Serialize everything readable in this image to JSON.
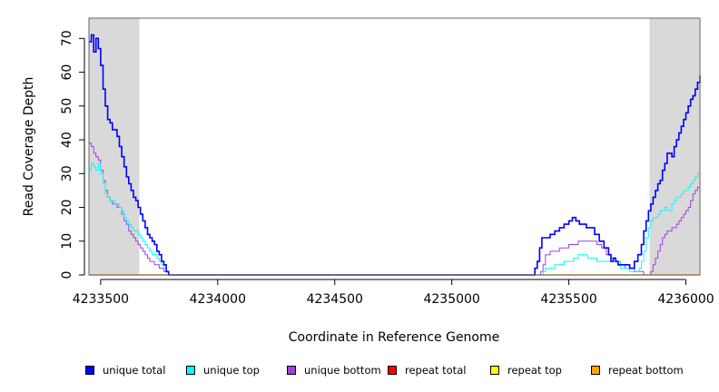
{
  "chart_data": {
    "type": "line",
    "title": "",
    "xlabel": "Coordinate in Reference Genome",
    "ylabel": "Read Coverage Depth",
    "xlim": [
      4233450,
      4236060
    ],
    "ylim": [
      0,
      76
    ],
    "x_ticks": [
      4233500,
      4234000,
      4234500,
      4235000,
      4235500,
      4236000
    ],
    "x_tick_labels": [
      "4233500",
      "4234000",
      "4234500",
      "4235000",
      "4235500",
      "4236000"
    ],
    "y_ticks": [
      0,
      10,
      20,
      30,
      40,
      50,
      60,
      70
    ],
    "y_tick_labels": [
      "0",
      "10",
      "20",
      "30",
      "40",
      "50",
      "60",
      "70"
    ],
    "grid": false,
    "legend_position": "bottom",
    "shaded_regions": [
      {
        "x": [
          4233450,
          4233665
        ],
        "color": "#d9d9d9"
      },
      {
        "x": [
          4235845,
          4236060
        ],
        "color": "#d9d9d9"
      }
    ],
    "series": [
      {
        "name": "unique total",
        "color": "#0000ff",
        "width": 1.6,
        "x": [
          4233450,
          4233460,
          4233470,
          4233480,
          4233490,
          4233500,
          4233510,
          4233520,
          4233530,
          4233540,
          4233550,
          4233560,
          4233570,
          4233580,
          4233590,
          4233600,
          4233610,
          4233620,
          4233630,
          4233640,
          4233650,
          4233660,
          4233670,
          4233680,
          4233690,
          4233700,
          4233710,
          4233720,
          4233730,
          4233740,
          4233750,
          4233760,
          4233770,
          4233780,
          4233790,
          4233800,
          4235340,
          4235355,
          4235365,
          4235375,
          4235385,
          4235400,
          4235420,
          4235440,
          4235460,
          4235480,
          4235500,
          4235515,
          4235530,
          4235545,
          4235560,
          4235575,
          4235590,
          4235610,
          4235630,
          4235650,
          4235670,
          4235680,
          4235690,
          4235700,
          4235710,
          4235720,
          4235740,
          4235760,
          4235780,
          4235795,
          4235810,
          4235820,
          4235830,
          4235840,
          4235850,
          4235860,
          4235870,
          4235880,
          4235890,
          4235900,
          4235910,
          4235920,
          4235930,
          4235940,
          4235950,
          4235960,
          4235970,
          4235980,
          4235990,
          4236000,
          4236010,
          4236020,
          4236030,
          4236040,
          4236050,
          4236060
        ],
        "y": [
          69,
          71,
          66,
          70,
          67,
          62,
          55,
          50,
          46,
          45,
          43,
          43,
          41,
          38,
          35,
          32,
          29,
          27,
          25,
          23,
          22,
          20,
          18,
          16,
          14,
          12,
          11,
          10,
          9,
          7,
          6,
          4,
          3,
          1,
          0,
          0,
          0,
          2,
          4,
          8,
          11,
          11,
          12,
          13,
          14,
          15,
          16,
          17,
          16,
          15,
          15,
          14,
          14,
          12,
          10,
          8,
          6,
          4,
          5,
          4,
          3,
          3,
          3,
          2,
          4,
          6,
          9,
          13,
          16,
          19,
          21,
          23,
          25,
          27,
          28,
          31,
          33,
          36,
          36,
          35,
          38,
          40,
          42,
          44,
          46,
          48,
          50,
          52,
          53,
          55,
          57,
          59
        ]
      },
      {
        "name": "unique top",
        "color": "#00ffff",
        "width": 1,
        "x": [
          4233450,
          4233460,
          4233470,
          4233480,
          4233490,
          4233500,
          4233510,
          4233520,
          4233530,
          4233540,
          4233550,
          4233560,
          4233570,
          4233580,
          4233590,
          4233600,
          4233610,
          4233620,
          4233630,
          4233640,
          4233650,
          4233660,
          4233670,
          4233680,
          4233690,
          4233700,
          4233710,
          4233720,
          4233730,
          4233740,
          4233750,
          4233760,
          4233770,
          4233780,
          4233790,
          4233800,
          4235380,
          4235390,
          4235400,
          4235420,
          4235440,
          4235460,
          4235480,
          4235500,
          4235520,
          4235540,
          4235560,
          4235580,
          4235600,
          4235620,
          4235640,
          4235660,
          4235680,
          4235700,
          4235720,
          4235740,
          4235760,
          4235780,
          4235800,
          4235810,
          4235820,
          4235830,
          4235840,
          4235850,
          4235860,
          4235870,
          4235880,
          4235890,
          4235900,
          4235910,
          4235920,
          4235930,
          4235940,
          4235950,
          4235960,
          4235970,
          4235980,
          4235990,
          4236000,
          4236010,
          4236020,
          4236030,
          4236040,
          4236050,
          4236060
        ],
        "y": [
          31,
          33,
          32,
          31,
          33,
          30,
          27,
          24,
          23,
          22,
          22,
          21,
          21,
          20,
          19,
          17,
          16,
          15,
          14,
          13,
          13,
          12,
          11,
          10,
          9,
          8,
          7,
          6,
          6,
          5,
          4,
          3,
          2,
          1,
          0,
          0,
          0,
          1,
          2,
          2,
          3,
          3,
          4,
          4,
          5,
          6,
          6,
          5,
          5,
          4,
          4,
          4,
          4,
          4,
          2,
          2,
          1,
          1,
          2,
          4,
          7,
          11,
          14,
          16,
          17,
          17,
          18,
          19,
          19,
          20,
          19,
          19,
          21,
          22,
          23,
          23,
          24,
          25,
          25,
          26,
          27,
          28,
          29,
          30,
          31
        ]
      },
      {
        "name": "unique bottom",
        "color": "#a040e0",
        "width": 1,
        "x": [
          4233450,
          4233460,
          4233470,
          4233480,
          4233490,
          4233500,
          4233510,
          4233520,
          4233530,
          4233540,
          4233550,
          4233560,
          4233570,
          4233580,
          4233590,
          4233600,
          4233610,
          4233620,
          4233630,
          4233640,
          4233650,
          4233660,
          4233670,
          4233680,
          4233690,
          4233700,
          4233710,
          4233720,
          4233730,
          4233740,
          4233750,
          4233760,
          4233770,
          4233780,
          4233790,
          4233800,
          4235370,
          4235380,
          4235390,
          4235400,
          4235420,
          4235440,
          4235460,
          4235480,
          4235500,
          4235520,
          4235540,
          4235560,
          4235580,
          4235600,
          4235620,
          4235640,
          4235660,
          4235680,
          4235700,
          4235720,
          4235740,
          4235760,
          4235780,
          4235800,
          4235820,
          4235840,
          4235850,
          4235860,
          4235870,
          4235880,
          4235890,
          4235900,
          4235910,
          4235920,
          4235930,
          4235940,
          4235950,
          4235960,
          4235970,
          4235980,
          4235990,
          4236000,
          4236010,
          4236020,
          4236030,
          4236040,
          4236050,
          4236060
        ],
        "y": [
          39,
          38,
          36,
          35,
          34,
          31,
          28,
          25,
          23,
          22,
          21,
          21,
          20,
          20,
          18,
          16,
          15,
          13,
          12,
          11,
          10,
          9,
          8,
          7,
          6,
          5,
          4,
          4,
          3,
          3,
          2,
          2,
          1,
          1,
          0,
          0,
          0,
          1,
          3,
          6,
          7,
          7,
          8,
          8,
          9,
          9,
          10,
          10,
          10,
          10,
          9,
          8,
          6,
          5,
          4,
          3,
          2,
          2,
          1,
          1,
          0,
          0,
          1,
          3,
          5,
          7,
          9,
          11,
          12,
          13,
          13,
          14,
          14,
          15,
          16,
          17,
          18,
          19,
          20,
          22,
          24,
          25,
          26,
          27
        ]
      },
      {
        "name": "repeat total",
        "color": "#ff0000",
        "width": 1,
        "x": [
          4233450,
          4236060
        ],
        "y": [
          0,
          0
        ]
      },
      {
        "name": "repeat top",
        "color": "#ffff00",
        "width": 1,
        "x": [
          4233450,
          4236060
        ],
        "y": [
          0,
          0
        ]
      },
      {
        "name": "repeat bottom",
        "color": "#ffa500",
        "width": 1.6,
        "x": [
          4233450,
          4236060
        ],
        "y": [
          0,
          0
        ]
      }
    ]
  }
}
